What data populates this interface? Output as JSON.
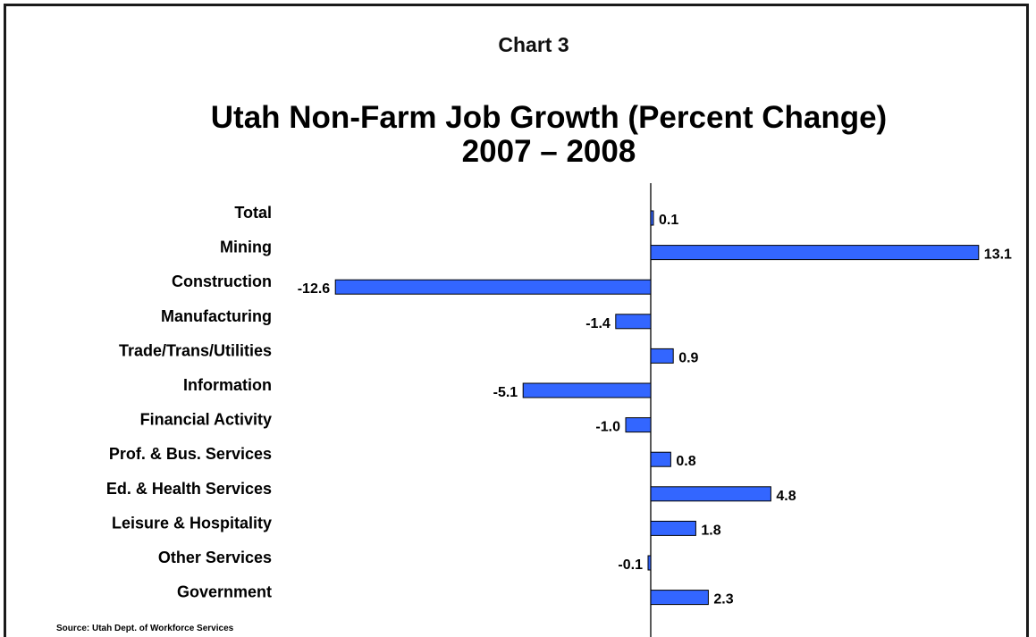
{
  "chart_label": "Chart 3",
  "chart_data": {
    "type": "bar",
    "orientation": "horizontal",
    "title": "Utah Non-Farm Job Growth (Percent Change)",
    "subtitle": "2007 – 2008",
    "categories": [
      "Total",
      "Mining",
      "Construction",
      "Manufacturing",
      "Trade/Trans/Utilities",
      "Information",
      "Financial Activity",
      "Prof. & Bus. Services",
      "Ed. & Health Services",
      "Leisure & Hospitality",
      "Other Services",
      "Government"
    ],
    "values": [
      0.1,
      13.1,
      -12.6,
      -1.4,
      0.9,
      -5.1,
      -1.0,
      0.8,
      4.8,
      1.8,
      -0.1,
      2.3
    ],
    "value_labels": [
      "0.1",
      "13.1",
      "-12.6",
      "-1.4",
      "0.9",
      "-5.1",
      "-1.0",
      "0.8",
      "4.8",
      "1.8",
      "-0.1",
      "2.3"
    ],
    "xlim": [
      -12.6,
      13.1
    ],
    "grid": false,
    "legend": "none",
    "bar_color": "#3366ff",
    "bar_outline": "#000000"
  },
  "source": "Source: Utah Dept. of Workforce Services"
}
